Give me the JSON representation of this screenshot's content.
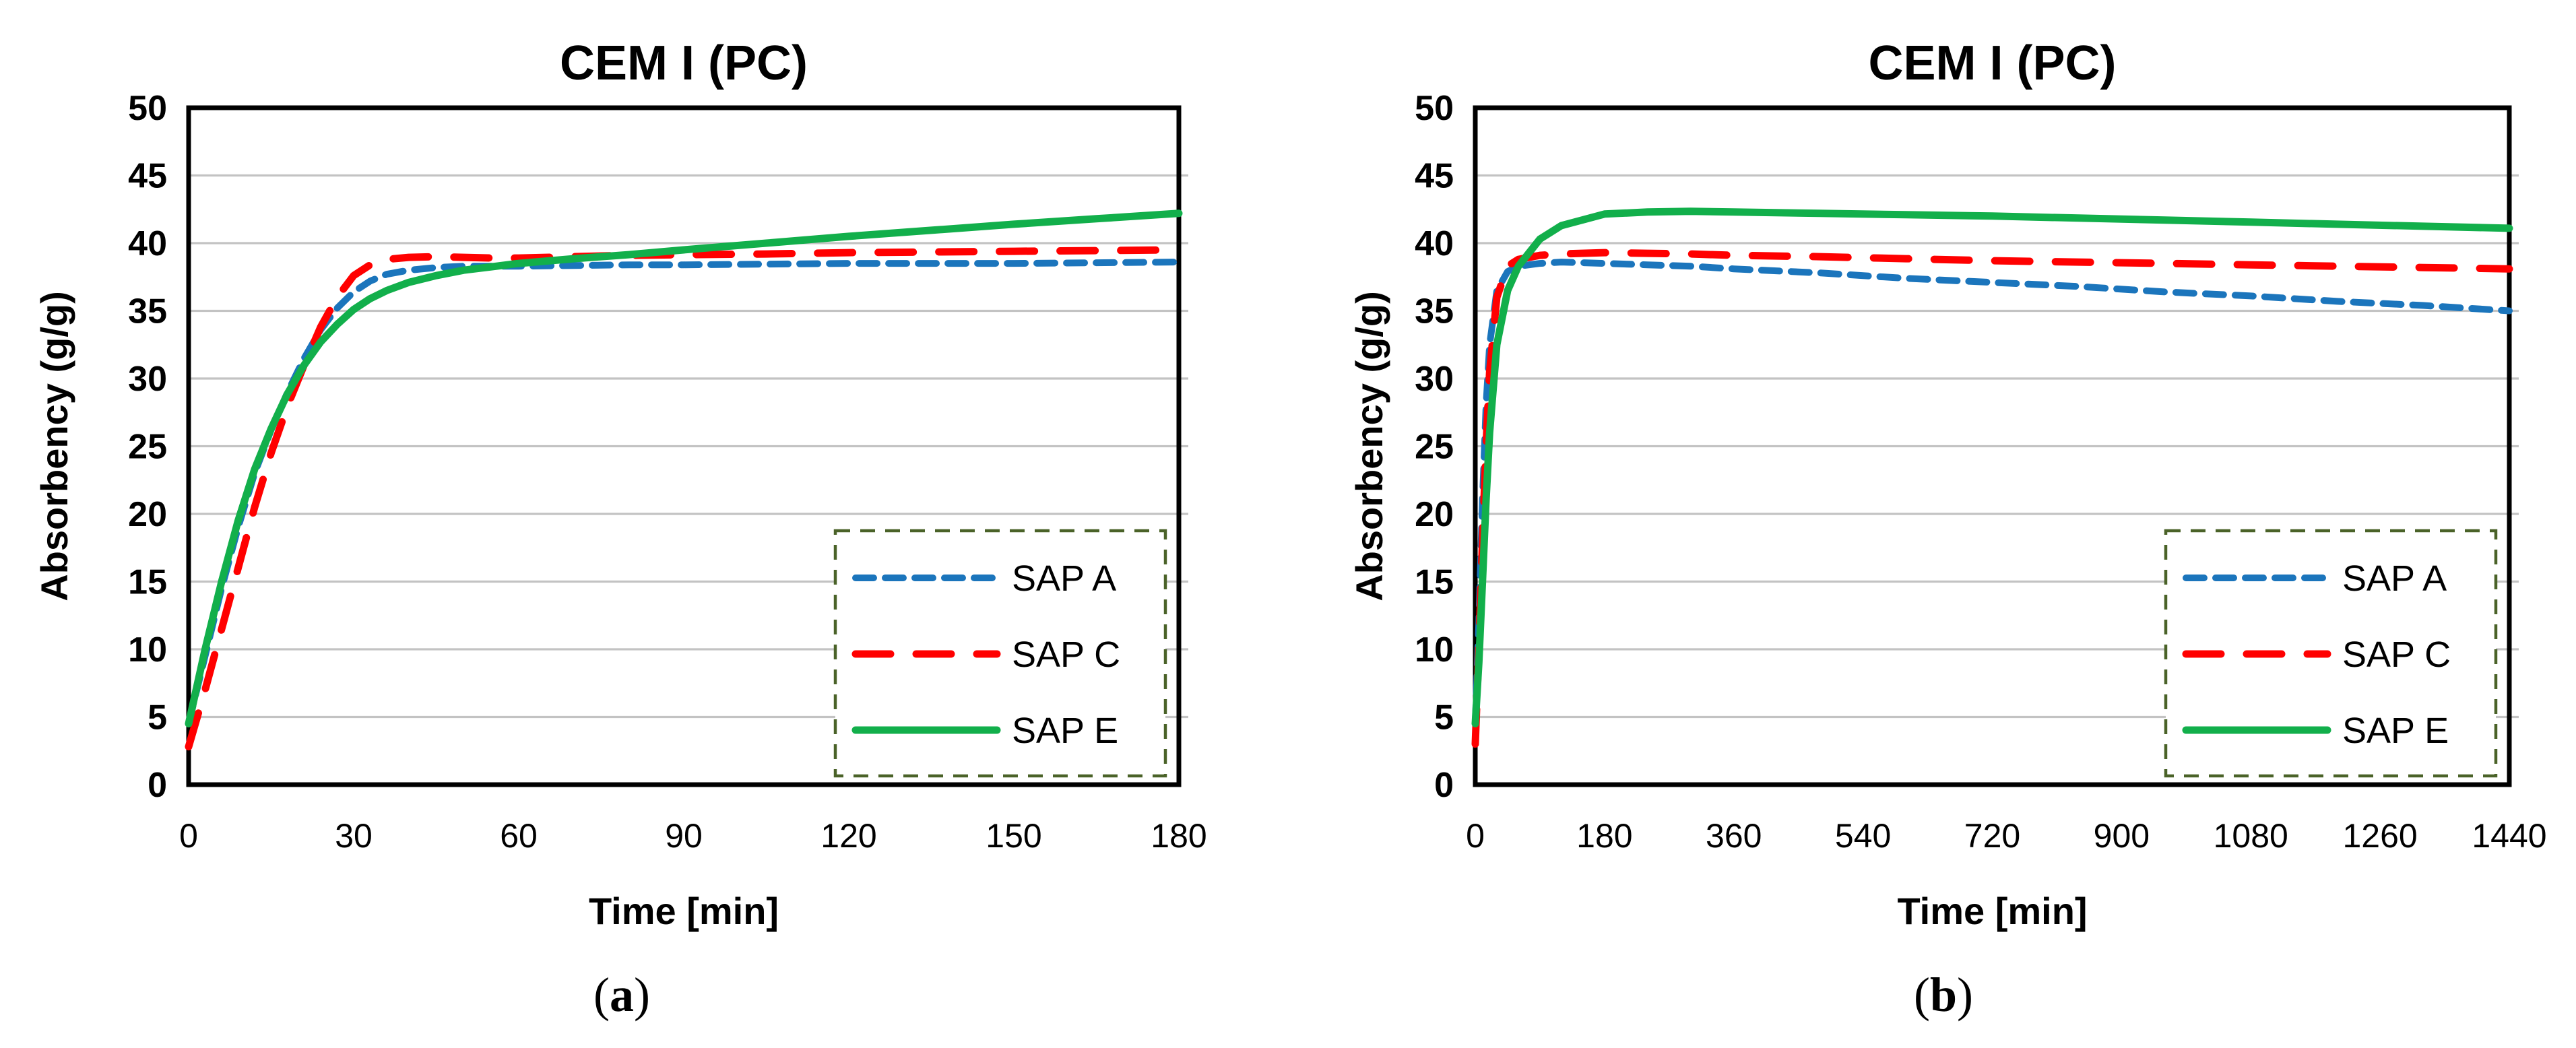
{
  "figure_title": "CEM I (PC)",
  "style": {
    "background": "#FFFFFF",
    "grid_color": "#C3C3C3",
    "axis_color": "#000000",
    "legend_border_color": "#4A6228",
    "sap_a_color": "#1B75BC",
    "sap_c_color": "#FF0000",
    "sap_e_color": "#12AF4B"
  },
  "captions": {
    "a": {
      "open": "(",
      "letter": "a",
      "close": ")"
    },
    "b": {
      "open": "(",
      "letter": "b",
      "close": ")"
    }
  },
  "chart_data": [
    {
      "id": "a",
      "type": "line",
      "title": "CEM I (PC)",
      "xlabel": "Time [min]",
      "ylabel": "Absorbency (g/g)",
      "xlim": [
        0,
        180
      ],
      "ylim": [
        0,
        50
      ],
      "xticks": [
        0,
        30,
        60,
        90,
        120,
        150,
        180
      ],
      "yticks": [
        0,
        5,
        10,
        15,
        20,
        25,
        30,
        35,
        40,
        45,
        50
      ],
      "grid": "horizontal",
      "legend_position": "inside-bottom-right",
      "series": [
        {
          "name": "SAP A",
          "color": "#1B75BC",
          "style": "dashed-short",
          "x": [
            0,
            3,
            6,
            9,
            12,
            15,
            18,
            21,
            24,
            27,
            30,
            33,
            36,
            40,
            45,
            50,
            55,
            60,
            70,
            80,
            90,
            105,
            120,
            135,
            150,
            165,
            180
          ],
          "y": [
            4.5,
            9.5,
            14.5,
            19.0,
            23.0,
            26.2,
            29.0,
            31.5,
            33.6,
            35.2,
            36.4,
            37.2,
            37.7,
            38.0,
            38.2,
            38.3,
            38.3,
            38.3,
            38.35,
            38.4,
            38.4,
            38.45,
            38.5,
            38.5,
            38.5,
            38.55,
            38.6
          ]
        },
        {
          "name": "SAP C",
          "color": "#FF0000",
          "style": "dashed-long",
          "x": [
            0,
            3,
            6,
            9,
            12,
            15,
            18,
            21,
            24,
            27,
            30,
            33,
            36,
            40,
            45,
            50,
            55,
            60,
            70,
            80,
            90,
            105,
            120,
            135,
            150,
            165,
            180
          ],
          "y": [
            2.8,
            7.0,
            11.5,
            16.0,
            20.5,
            24.5,
            28.0,
            31.0,
            33.8,
            36.0,
            37.6,
            38.4,
            38.8,
            38.95,
            39.0,
            38.95,
            38.9,
            38.9,
            39.0,
            39.1,
            39.15,
            39.2,
            39.3,
            39.35,
            39.4,
            39.45,
            39.5
          ]
        },
        {
          "name": "SAP E",
          "color": "#12AF4B",
          "style": "solid",
          "x": [
            0,
            3,
            6,
            9,
            12,
            15,
            18,
            21,
            24,
            27,
            30,
            33,
            36,
            40,
            45,
            50,
            55,
            60,
            70,
            80,
            90,
            105,
            120,
            135,
            150,
            165,
            180
          ],
          "y": [
            4.5,
            10.0,
            15.0,
            19.5,
            23.3,
            26.3,
            28.9,
            31.0,
            32.7,
            34.0,
            35.1,
            35.9,
            36.5,
            37.1,
            37.6,
            38.0,
            38.25,
            38.5,
            38.85,
            39.15,
            39.5,
            40.0,
            40.5,
            40.95,
            41.4,
            41.8,
            42.2
          ]
        }
      ]
    },
    {
      "id": "b",
      "type": "line",
      "title": "CEM I (PC)",
      "xlabel": "Time [min]",
      "ylabel": "Absorbency (g/g)",
      "xlim": [
        0,
        1440
      ],
      "ylim": [
        0,
        50
      ],
      "xticks": [
        0,
        180,
        360,
        540,
        720,
        900,
        1080,
        1260,
        1440
      ],
      "yticks": [
        0,
        5,
        10,
        15,
        20,
        25,
        30,
        35,
        40,
        45,
        50
      ],
      "grid": "horizontal",
      "legend_position": "inside-bottom-right",
      "series": [
        {
          "name": "SAP A",
          "color": "#1B75BC",
          "style": "dashed-short",
          "x": [
            0,
            5,
            10,
            15,
            20,
            30,
            45,
            60,
            90,
            120,
            180,
            240,
            300,
            360,
            480,
            600,
            720,
            840,
            960,
            1080,
            1200,
            1320,
            1440
          ],
          "y": [
            4.5,
            12,
            21,
            28,
            32.5,
            36.5,
            37.9,
            38.3,
            38.5,
            38.6,
            38.5,
            38.4,
            38.3,
            38.1,
            37.8,
            37.4,
            37.1,
            36.8,
            36.4,
            36.1,
            35.7,
            35.4,
            35.0
          ]
        },
        {
          "name": "SAP C",
          "color": "#FF0000",
          "style": "dashed-long",
          "x": [
            0,
            5,
            10,
            15,
            20,
            30,
            45,
            60,
            90,
            120,
            180,
            240,
            300,
            360,
            480,
            600,
            720,
            840,
            960,
            1080,
            1200,
            1320,
            1440
          ],
          "y": [
            3.0,
            10,
            18,
            25,
            30.5,
            36.0,
            38.3,
            38.8,
            39.1,
            39.2,
            39.3,
            39.25,
            39.2,
            39.1,
            39.0,
            38.85,
            38.7,
            38.6,
            38.5,
            38.4,
            38.3,
            38.2,
            38.1
          ]
        },
        {
          "name": "SAP E",
          "color": "#12AF4B",
          "style": "solid",
          "x": [
            0,
            5,
            10,
            15,
            20,
            30,
            45,
            60,
            90,
            120,
            180,
            240,
            300,
            360,
            480,
            600,
            720,
            840,
            960,
            1080,
            1200,
            1320,
            1440
          ],
          "y": [
            4.5,
            9.0,
            15.0,
            21.0,
            26.0,
            32.5,
            36.5,
            38.3,
            40.3,
            41.3,
            42.15,
            42.3,
            42.35,
            42.3,
            42.2,
            42.1,
            42.0,
            41.85,
            41.7,
            41.55,
            41.4,
            41.25,
            41.1
          ]
        }
      ]
    }
  ]
}
